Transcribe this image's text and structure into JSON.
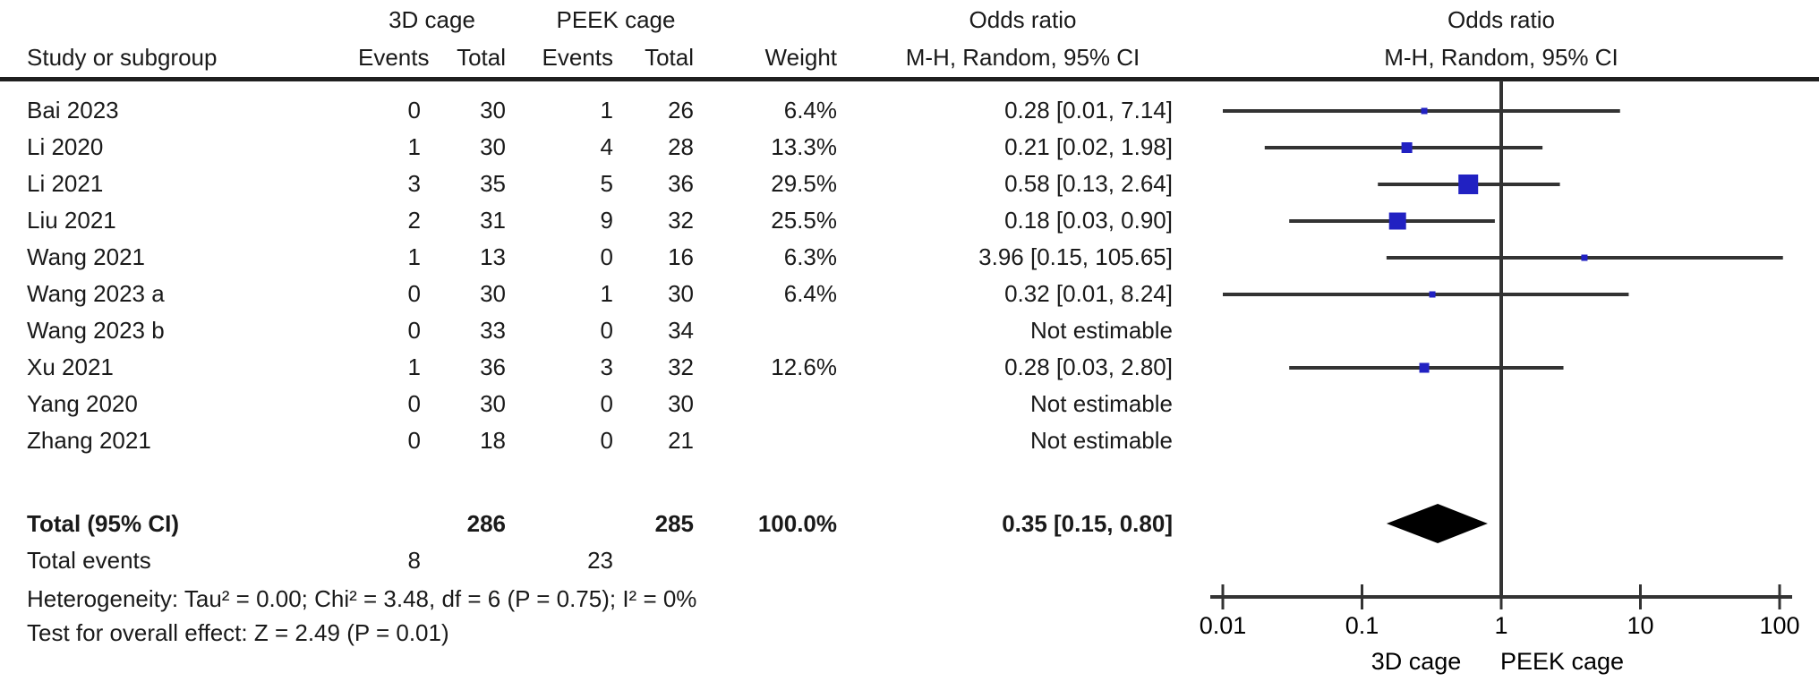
{
  "table": {
    "header": {
      "study": "Study or subgroup",
      "group1": "3D cage",
      "group2": "PEEK cage",
      "events": "Events",
      "total": "Total",
      "weight": "Weight",
      "or_title": "Odds ratio",
      "or_method": "M-H, Random, 95% CI"
    },
    "rows": [
      {
        "study": "Bai 2023",
        "e1": "0",
        "t1": "30",
        "e2": "1",
        "t2": "26",
        "weight": "6.4%",
        "or": "0.28 [0.01, 7.14]"
      },
      {
        "study": "Li 2020",
        "e1": "1",
        "t1": "30",
        "e2": "4",
        "t2": "28",
        "weight": "13.3%",
        "or": "0.21 [0.02, 1.98]"
      },
      {
        "study": "Li 2021",
        "e1": "3",
        "t1": "35",
        "e2": "5",
        "t2": "36",
        "weight": "29.5%",
        "or": "0.58 [0.13, 2.64]"
      },
      {
        "study": "Liu 2021",
        "e1": "2",
        "t1": "31",
        "e2": "9",
        "t2": "32",
        "weight": "25.5%",
        "or": "0.18 [0.03, 0.90]"
      },
      {
        "study": "Wang 2021",
        "e1": "1",
        "t1": "13",
        "e2": "0",
        "t2": "16",
        "weight": "6.3%",
        "or": "3.96 [0.15, 105.65]"
      },
      {
        "study": "Wang 2023 a",
        "e1": "0",
        "t1": "30",
        "e2": "1",
        "t2": "30",
        "weight": "6.4%",
        "or": "0.32 [0.01, 8.24]"
      },
      {
        "study": "Wang 2023 b",
        "e1": "0",
        "t1": "33",
        "e2": "0",
        "t2": "34",
        "weight": "",
        "or": "Not estimable"
      },
      {
        "study": "Xu 2021",
        "e1": "1",
        "t1": "36",
        "e2": "3",
        "t2": "32",
        "weight": "12.6%",
        "or": "0.28 [0.03, 2.80]"
      },
      {
        "study": "Yang 2020",
        "e1": "0",
        "t1": "30",
        "e2": "0",
        "t2": "30",
        "weight": "",
        "or": "Not estimable"
      },
      {
        "study": "Zhang 2021",
        "e1": "0",
        "t1": "18",
        "e2": "0",
        "t2": "21",
        "weight": "",
        "or": "Not estimable"
      }
    ],
    "total_row": {
      "label": "Total (95% CI)",
      "t1": "286",
      "t2": "285",
      "weight": "100.0%",
      "or": "0.35 [0.15, 0.80]"
    },
    "total_events": {
      "label": "Total events",
      "e1": "8",
      "e2": "23"
    },
    "heterogeneity": "Heterogeneity: Tau² = 0.00; Chi² = 3.48, df = 6 (P = 0.75); I² = 0%",
    "overall_effect": "Test for overall effect: Z = 2.49 (P = 0.01)"
  },
  "chart_data": {
    "type": "forest",
    "title": "Odds ratio",
    "method": "M-H, Random, 95% CI",
    "x_axis": {
      "scale": "log",
      "range": [
        0.01,
        100
      ],
      "ticks": [
        0.01,
        0.1,
        1,
        10,
        100
      ],
      "tick_labels": [
        "0.01",
        "0.1",
        "1",
        "10",
        "100"
      ],
      "null_line": 1
    },
    "studies": [
      {
        "name": "Bai 2023",
        "or": 0.28,
        "ci_low": 0.01,
        "ci_high": 7.14,
        "weight": 6.4,
        "estimable": true
      },
      {
        "name": "Li 2020",
        "or": 0.21,
        "ci_low": 0.02,
        "ci_high": 1.98,
        "weight": 13.3,
        "estimable": true
      },
      {
        "name": "Li 2021",
        "or": 0.58,
        "ci_low": 0.13,
        "ci_high": 2.64,
        "weight": 29.5,
        "estimable": true
      },
      {
        "name": "Liu 2021",
        "or": 0.18,
        "ci_low": 0.03,
        "ci_high": 0.9,
        "weight": 25.5,
        "estimable": true
      },
      {
        "name": "Wang 2021",
        "or": 3.96,
        "ci_low": 0.15,
        "ci_high": 105.65,
        "weight": 6.3,
        "estimable": true
      },
      {
        "name": "Wang 2023 a",
        "or": 0.32,
        "ci_low": 0.01,
        "ci_high": 8.24,
        "weight": 6.4,
        "estimable": true
      },
      {
        "name": "Wang 2023 b",
        "estimable": false
      },
      {
        "name": "Xu 2021",
        "or": 0.28,
        "ci_low": 0.03,
        "ci_high": 2.8,
        "weight": 12.6,
        "estimable": true
      },
      {
        "name": "Yang 2020",
        "estimable": false
      },
      {
        "name": "Zhang 2021",
        "estimable": false
      }
    ],
    "total": {
      "or": 0.35,
      "ci_low": 0.15,
      "ci_high": 0.8
    },
    "footer_labels": {
      "left": "3D cage",
      "right": "PEEK cage"
    },
    "colors": {
      "square": "#2121c2",
      "diamond": "#000000",
      "line": "#333333"
    }
  }
}
